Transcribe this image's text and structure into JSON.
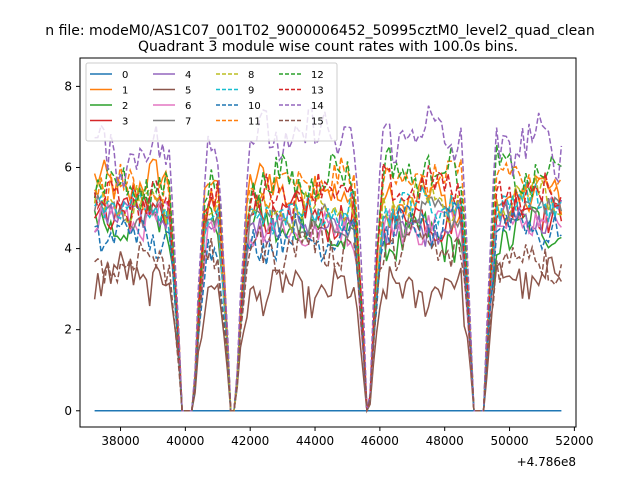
{
  "chart_data": {
    "type": "line",
    "suptitle": "n file: modeM0/AS1C07_001T02_9000006452_50995cztM0_level2_quad_clean",
    "title": "Quadrant 3 module wise count rates with 100.0s bins.",
    "xlabel": "",
    "ylabel": "",
    "x_offset_label": "+4.786e8",
    "x_range": [
      37200,
      51600
    ],
    "xlim": [
      36750,
      52050
    ],
    "ylim": [
      -0.4,
      8.7
    ],
    "xticks": [
      38000,
      40000,
      42000,
      44000,
      46000,
      48000,
      50000,
      52000
    ],
    "xtick_labels": [
      "38000",
      "40000",
      "42000",
      "44000",
      "46000",
      "48000",
      "50000",
      "52000"
    ],
    "yticks": [
      0,
      2,
      4,
      6,
      8
    ],
    "ytick_labels": [
      "0",
      "2",
      "4",
      "6",
      "8"
    ],
    "grid": false,
    "legend_position": "top-left",
    "legend_columns": 4,
    "gaps": [
      {
        "start": 39900,
        "end": 40250
      },
      {
        "start": 41400,
        "end": 41550
      },
      {
        "start": 45600,
        "end": 45680
      },
      {
        "start": 48900,
        "end": 49200
      }
    ],
    "series": [
      {
        "name": "0",
        "color": "#1f77b4",
        "style": "solid",
        "base": 0.0,
        "amp": 0.0
      },
      {
        "name": "1",
        "color": "#ff7f0e",
        "style": "solid",
        "base": 5.4,
        "amp": 0.45
      },
      {
        "name": "2",
        "color": "#2ca02c",
        "style": "solid",
        "base": 4.5,
        "amp": 0.45
      },
      {
        "name": "3",
        "color": "#d62728",
        "style": "solid",
        "base": 4.9,
        "amp": 0.4
      },
      {
        "name": "4",
        "color": "#9467bd",
        "style": "solid",
        "base": 4.7,
        "amp": 0.35
      },
      {
        "name": "5",
        "color": "#8c564b",
        "style": "solid",
        "base": 3.1,
        "amp": 0.45
      },
      {
        "name": "6",
        "color": "#e377c2",
        "style": "solid",
        "base": 4.6,
        "amp": 0.35
      },
      {
        "name": "7",
        "color": "#7f7f7f",
        "style": "solid",
        "base": 4.8,
        "amp": 0.3
      },
      {
        "name": "8",
        "color": "#bcbd22",
        "style": "dashed",
        "base": 5.1,
        "amp": 0.4
      },
      {
        "name": "9",
        "color": "#17becf",
        "style": "dashed",
        "base": 5.0,
        "amp": 0.35
      },
      {
        "name": "10",
        "color": "#1f77b4",
        "style": "dashed",
        "base": 4.4,
        "amp": 0.4
      },
      {
        "name": "11",
        "color": "#ff7f0e",
        "style": "dashed",
        "base": 5.6,
        "amp": 0.4
      },
      {
        "name": "12",
        "color": "#2ca02c",
        "style": "dashed",
        "base": 5.7,
        "amp": 0.45
      },
      {
        "name": "13",
        "color": "#d62728",
        "style": "dashed",
        "base": 5.3,
        "amp": 0.4
      },
      {
        "name": "14",
        "color": "#9467bd",
        "style": "dashed",
        "base": 6.6,
        "amp": 0.55
      },
      {
        "name": "15",
        "color": "#8c564b",
        "style": "dashed",
        "base": 3.9,
        "amp": 0.45
      }
    ]
  }
}
